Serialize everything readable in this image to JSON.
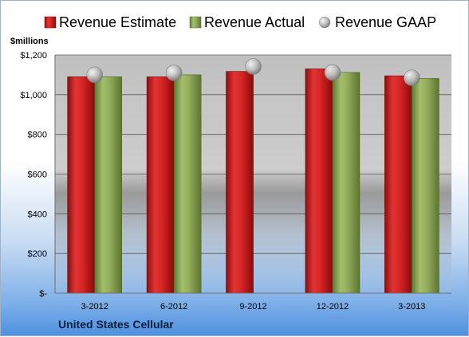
{
  "chart_data": {
    "type": "bar",
    "categories": [
      "3-2012",
      "6-2012",
      "9-2012",
      "12-2012",
      "3-2013"
    ],
    "series": [
      {
        "name": "Revenue Estimate",
        "values": [
          1090,
          1090,
          1117,
          1130,
          1095
        ],
        "color": "#cc1f1f"
      },
      {
        "name": "Revenue Actual",
        "values": [
          1090,
          1100,
          null,
          1112,
          1082
        ],
        "color": "#8aa656"
      },
      {
        "name": "Revenue GAAP",
        "values": [
          1100,
          1110,
          1142,
          1112,
          1085
        ],
        "color": "#c8c8c8"
      }
    ],
    "ylabel": "$millions",
    "ylim": [
      0,
      1200
    ],
    "yticks": [
      0,
      200,
      400,
      600,
      800,
      1000,
      1200
    ],
    "ytick_labels": [
      "$-",
      "$200",
      "$400",
      "$600",
      "$800",
      "$1,000",
      "$1,200"
    ],
    "grid": true,
    "legend": "top",
    "caption": "United States Cellular"
  }
}
